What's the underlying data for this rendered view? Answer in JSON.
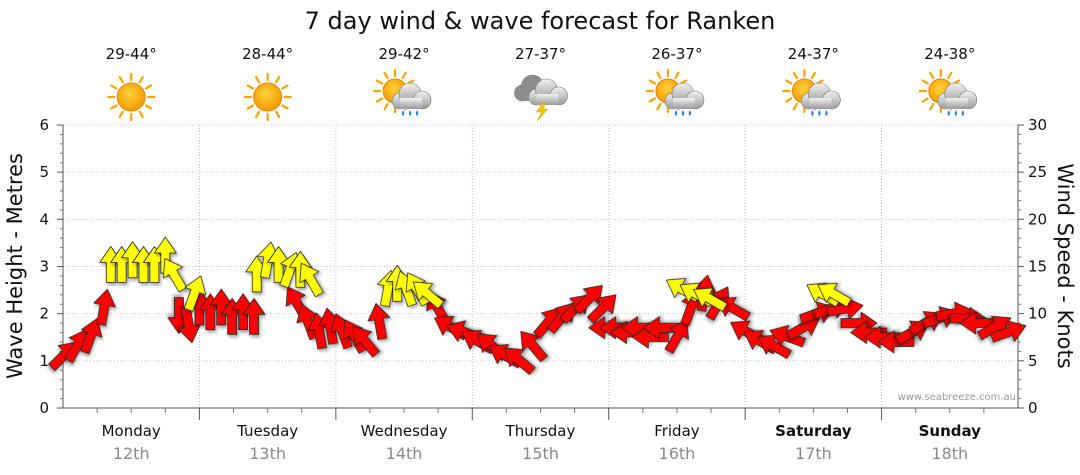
{
  "chart_data": {
    "type": "wind-wave-forecast",
    "title": "7 day wind & wave forecast for Ranken",
    "y_left": {
      "label": "Wave Height - Metres",
      "min": 0,
      "max": 6,
      "ticks": [
        "0",
        "1",
        "2",
        "3",
        "4",
        "5",
        "6"
      ]
    },
    "y_right": {
      "label": "Wind Speed - Knots",
      "min": 0,
      "max": 30,
      "ticks": [
        "0",
        "5",
        "10",
        "15",
        "20",
        "25",
        "30"
      ]
    },
    "days": [
      {
        "name": "Monday",
        "date": "12th",
        "temp": "29-44°",
        "weather": "sunny",
        "bold": false
      },
      {
        "name": "Tuesday",
        "date": "13th",
        "temp": "28-44°",
        "weather": "sunny",
        "bold": false
      },
      {
        "name": "Wednesday",
        "date": "14th",
        "temp": "29-42°",
        "weather": "sun-showers",
        "bold": false
      },
      {
        "name": "Thursday",
        "date": "15th",
        "temp": "27-37°",
        "weather": "storm",
        "bold": false
      },
      {
        "name": "Friday",
        "date": "16th",
        "temp": "26-37°",
        "weather": "sun-showers",
        "bold": false
      },
      {
        "name": "Saturday",
        "date": "17th",
        "temp": "24-37°",
        "weather": "sun-showers",
        "bold": true
      },
      {
        "name": "Sunday",
        "date": "18th",
        "temp": "24-38°",
        "weather": "sun-showers",
        "bold": true
      }
    ],
    "series": [
      {
        "name": "Wind Speed (knots)",
        "color": "#ff0000",
        "marker": "arrow",
        "points": [
          {
            "day": 0.0,
            "value": 5.5,
            "dir": 45
          },
          {
            "day": 0.1,
            "value": 6.5,
            "dir": 30
          },
          {
            "day": 0.2,
            "value": 7.5,
            "dir": 20
          },
          {
            "day": 0.3,
            "value": 10.5,
            "dir": 10
          },
          {
            "day": 0.85,
            "value": 10.0,
            "dir": 180
          },
          {
            "day": 0.92,
            "value": 9.0,
            "dir": 170
          },
          {
            "day": 1.0,
            "value": 10.5,
            "dir": 0
          },
          {
            "day": 1.08,
            "value": 10.0,
            "dir": 0
          },
          {
            "day": 1.16,
            "value": 10.5,
            "dir": 0
          },
          {
            "day": 1.24,
            "value": 9.5,
            "dir": 0
          },
          {
            "day": 1.32,
            "value": 10.0,
            "dir": 0
          },
          {
            "day": 1.4,
            "value": 9.5,
            "dir": 0
          },
          {
            "day": 1.72,
            "value": 11.0,
            "dir": 330
          },
          {
            "day": 1.8,
            "value": 9.0,
            "dir": 340
          },
          {
            "day": 1.88,
            "value": 8.0,
            "dir": 350
          },
          {
            "day": 1.96,
            "value": 8.5,
            "dir": 350
          },
          {
            "day": 2.05,
            "value": 8.0,
            "dir": 340
          },
          {
            "day": 2.14,
            "value": 7.5,
            "dir": 330
          },
          {
            "day": 2.22,
            "value": 7.0,
            "dir": 320
          },
          {
            "day": 2.32,
            "value": 9.0,
            "dir": 350
          },
          {
            "day": 2.75,
            "value": 10.5,
            "dir": 330
          },
          {
            "day": 2.85,
            "value": 8.5,
            "dir": 300
          },
          {
            "day": 2.95,
            "value": 8.0,
            "dir": 290
          },
          {
            "day": 3.05,
            "value": 7.0,
            "dir": 300
          },
          {
            "day": 3.15,
            "value": 6.5,
            "dir": 310
          },
          {
            "day": 3.25,
            "value": 5.5,
            "dir": 300
          },
          {
            "day": 3.35,
            "value": 5.0,
            "dir": 310
          },
          {
            "day": 3.45,
            "value": 6.5,
            "dir": 320
          },
          {
            "day": 3.55,
            "value": 9.0,
            "dir": 40
          },
          {
            "day": 3.65,
            "value": 9.5,
            "dir": 40
          },
          {
            "day": 3.75,
            "value": 10.5,
            "dir": 45
          },
          {
            "day": 3.85,
            "value": 11.5,
            "dir": 45
          },
          {
            "day": 3.95,
            "value": 10.5,
            "dir": 45
          },
          {
            "day": 4.0,
            "value": 8.5,
            "dir": 270
          },
          {
            "day": 4.08,
            "value": 8.5,
            "dir": 270
          },
          {
            "day": 4.16,
            "value": 8.0,
            "dir": 270
          },
          {
            "day": 4.24,
            "value": 8.5,
            "dir": 270
          },
          {
            "day": 4.32,
            "value": 7.5,
            "dir": 270
          },
          {
            "day": 4.4,
            "value": 8.5,
            "dir": 270
          },
          {
            "day": 4.5,
            "value": 7.5,
            "dir": 30
          },
          {
            "day": 4.6,
            "value": 10.5,
            "dir": 20
          },
          {
            "day": 4.7,
            "value": 12.0,
            "dir": 10
          },
          {
            "day": 4.8,
            "value": 11.0,
            "dir": 30
          },
          {
            "day": 4.92,
            "value": 10.5,
            "dir": 300
          },
          {
            "day": 5.02,
            "value": 8.0,
            "dir": 300
          },
          {
            "day": 5.12,
            "value": 7.0,
            "dir": 300
          },
          {
            "day": 5.22,
            "value": 6.5,
            "dir": 300
          },
          {
            "day": 5.32,
            "value": 7.5,
            "dir": 290
          },
          {
            "day": 5.42,
            "value": 8.5,
            "dir": 60
          },
          {
            "day": 5.52,
            "value": 10.0,
            "dir": 70
          },
          {
            "day": 5.62,
            "value": 10.5,
            "dir": 70
          },
          {
            "day": 5.72,
            "value": 10.5,
            "dir": 80
          },
          {
            "day": 5.82,
            "value": 9.0,
            "dir": 90
          },
          {
            "day": 5.92,
            "value": 8.0,
            "dir": 270
          },
          {
            "day": 6.02,
            "value": 7.5,
            "dir": 270
          },
          {
            "day": 6.12,
            "value": 7.0,
            "dir": 270
          },
          {
            "day": 6.22,
            "value": 8.0,
            "dir": 60
          },
          {
            "day": 6.32,
            "value": 9.0,
            "dir": 60
          },
          {
            "day": 6.42,
            "value": 9.5,
            "dir": 70
          },
          {
            "day": 6.52,
            "value": 10.0,
            "dir": 80
          },
          {
            "day": 6.62,
            "value": 9.5,
            "dir": 90
          },
          {
            "day": 6.72,
            "value": 9.0,
            "dir": 270
          },
          {
            "day": 6.82,
            "value": 8.5,
            "dir": 60
          },
          {
            "day": 6.92,
            "value": 8.0,
            "dir": 70
          }
        ]
      },
      {
        "name": "Wave Height (metres)",
        "color": "#ffff00",
        "marker": "arrow",
        "points": [
          {
            "day": 0.35,
            "value": 3.0,
            "dir": 0
          },
          {
            "day": 0.43,
            "value": 3.0,
            "dir": 0
          },
          {
            "day": 0.51,
            "value": 3.1,
            "dir": 0
          },
          {
            "day": 0.59,
            "value": 3.0,
            "dir": 0
          },
          {
            "day": 0.67,
            "value": 3.0,
            "dir": 0
          },
          {
            "day": 0.75,
            "value": 3.2,
            "dir": 0
          },
          {
            "day": 0.82,
            "value": 2.8,
            "dir": 330
          },
          {
            "day": 0.96,
            "value": 2.4,
            "dir": 20
          },
          {
            "day": 1.42,
            "value": 2.8,
            "dir": 0
          },
          {
            "day": 1.5,
            "value": 3.1,
            "dir": 10
          },
          {
            "day": 1.58,
            "value": 3.0,
            "dir": 0
          },
          {
            "day": 1.66,
            "value": 2.9,
            "dir": 20
          },
          {
            "day": 1.74,
            "value": 2.9,
            "dir": 0
          },
          {
            "day": 1.82,
            "value": 2.7,
            "dir": 330
          },
          {
            "day": 2.38,
            "value": 2.5,
            "dir": 10
          },
          {
            "day": 2.45,
            "value": 2.6,
            "dir": 0
          },
          {
            "day": 2.52,
            "value": 2.5,
            "dir": 340
          },
          {
            "day": 2.6,
            "value": 2.5,
            "dir": 330
          },
          {
            "day": 2.68,
            "value": 2.4,
            "dir": 310
          },
          {
            "day": 4.55,
            "value": 2.5,
            "dir": 300
          },
          {
            "day": 4.65,
            "value": 2.4,
            "dir": 300
          },
          {
            "day": 4.75,
            "value": 2.3,
            "dir": 300
          },
          {
            "day": 5.58,
            "value": 2.4,
            "dir": 300
          },
          {
            "day": 5.66,
            "value": 2.4,
            "dir": 300
          }
        ]
      }
    ]
  },
  "watermark": "www.seabreeze.com.au"
}
